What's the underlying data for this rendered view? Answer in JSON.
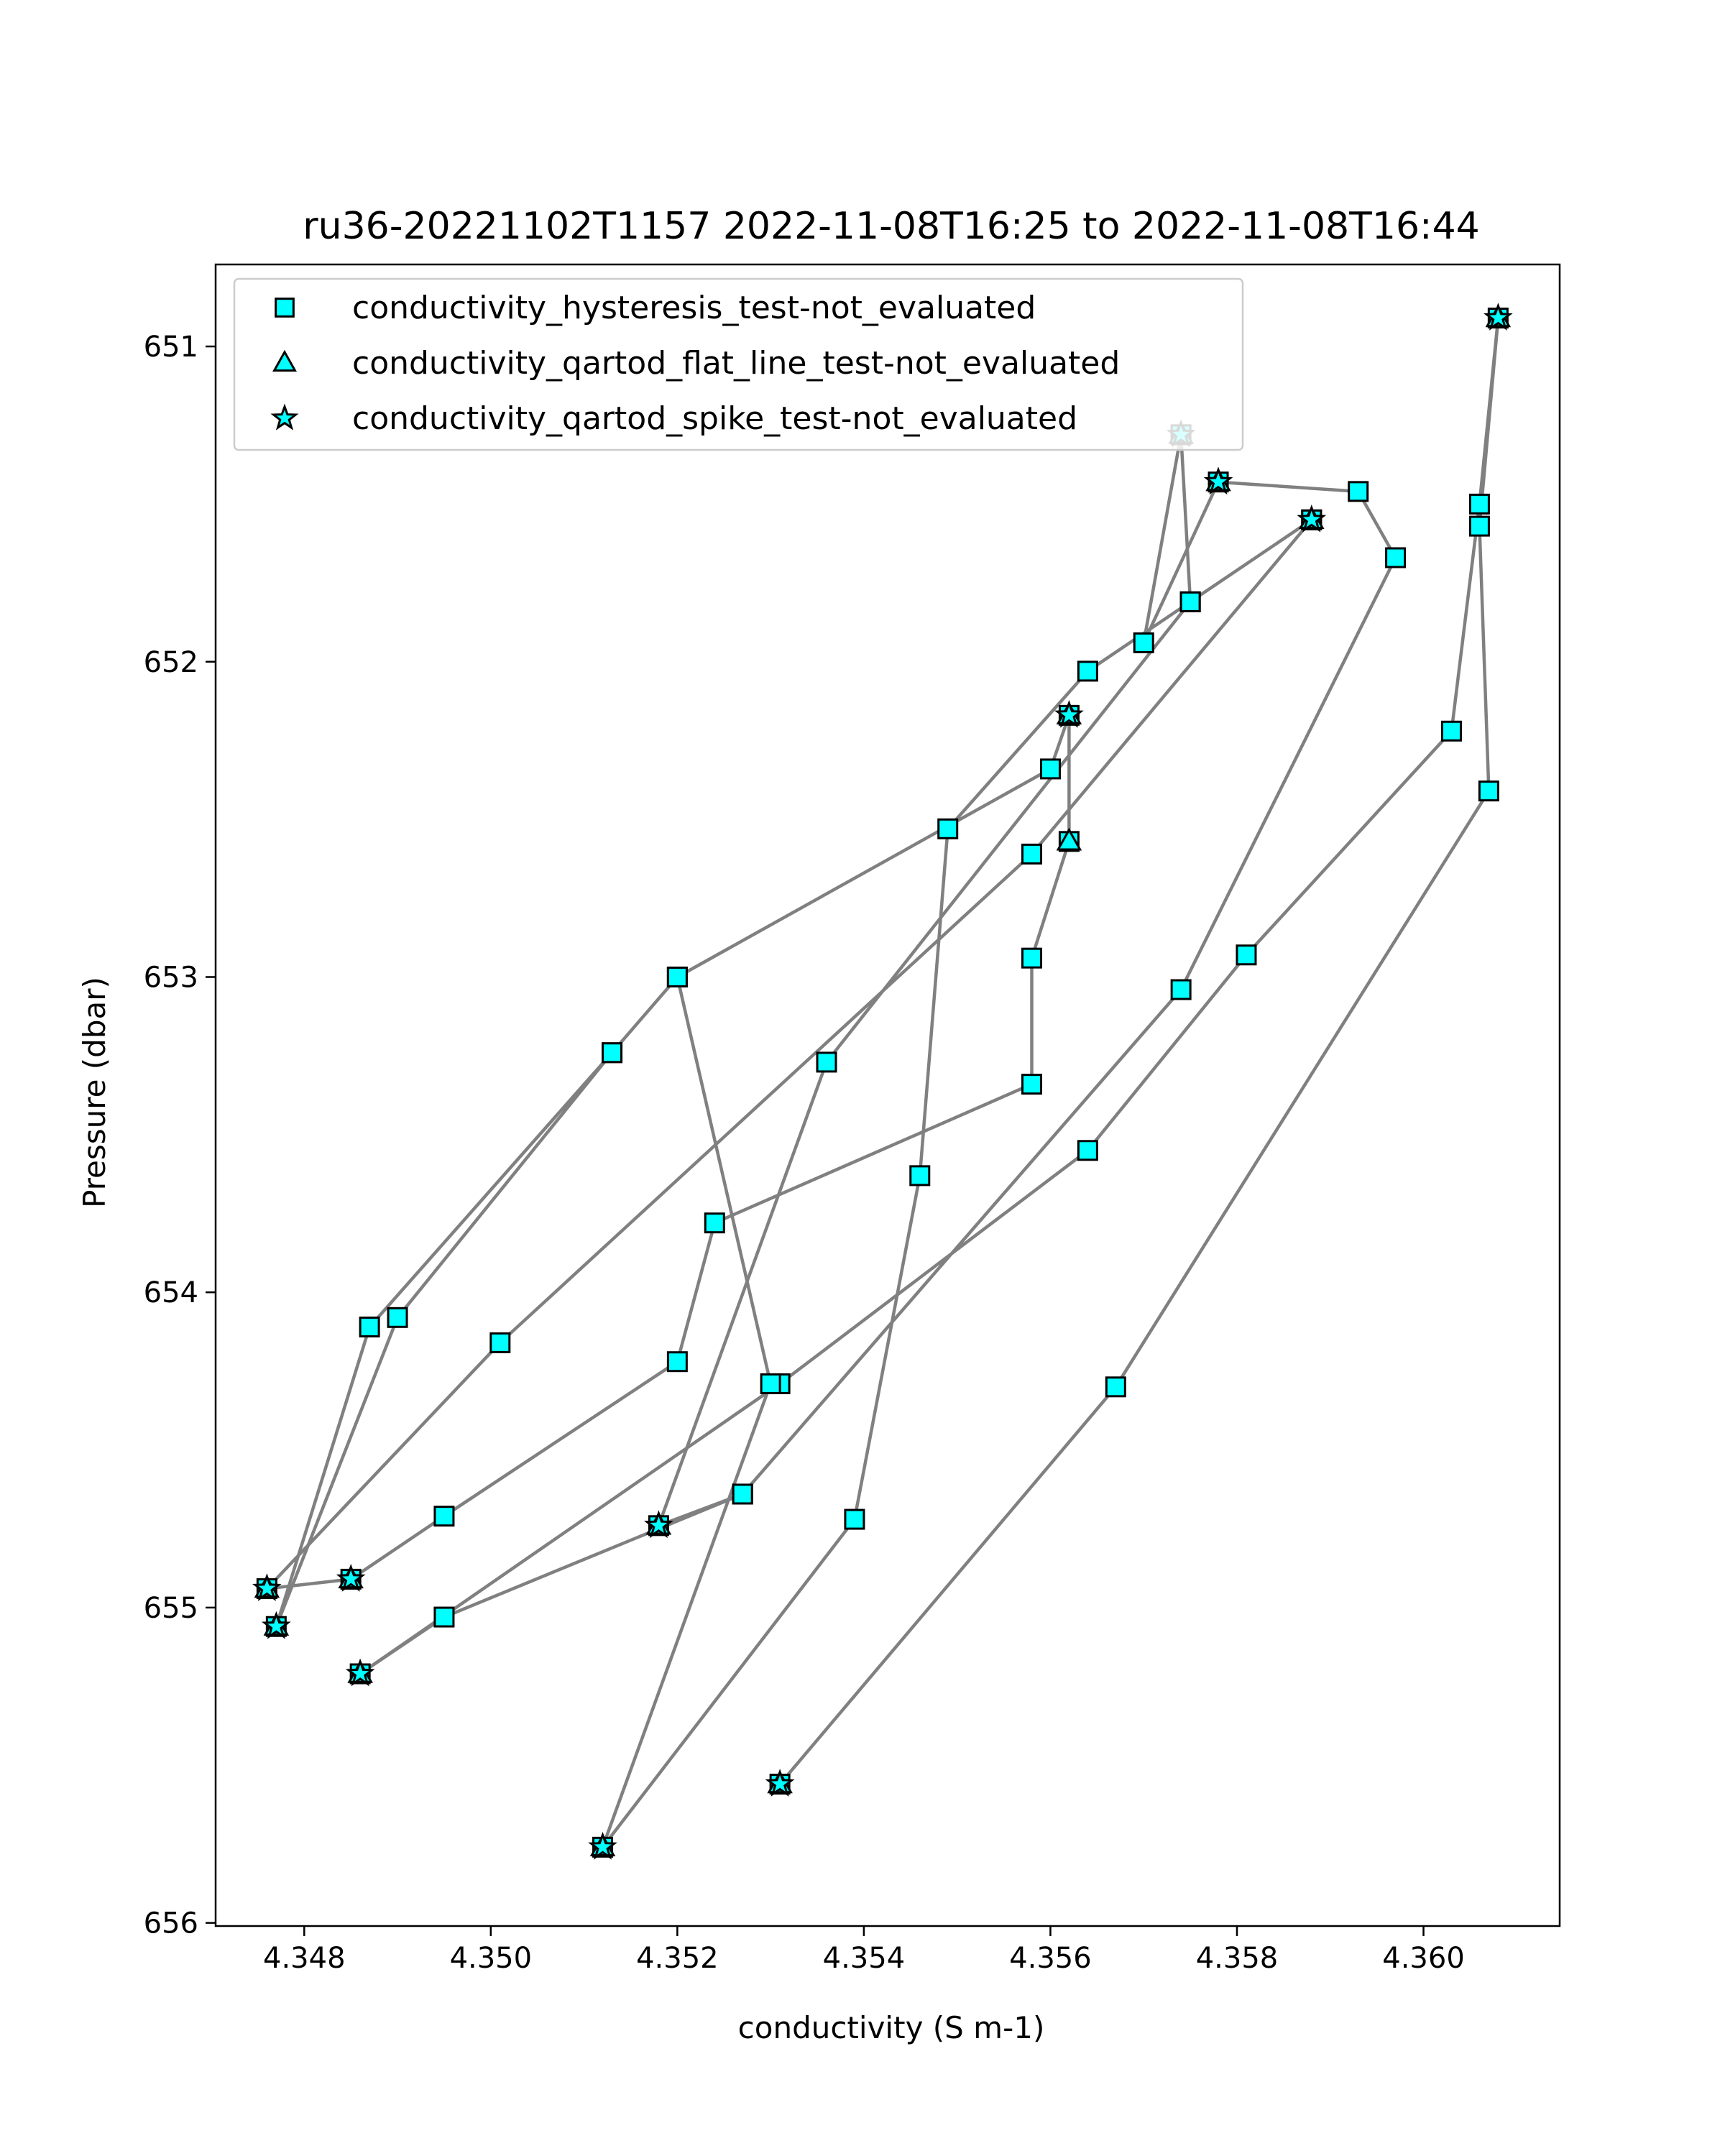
{
  "chart_data": {
    "type": "line",
    "title": "ru36-20221102T1157 2022-11-08T16:25 to 2022-11-08T16:44",
    "xlabel": "conductivity (S m-1)",
    "ylabel": "Pressure (dbar)",
    "xlim": [
      4.34705,
      4.36146
    ],
    "ylim": [
      656.01,
      650.74
    ],
    "y_inverted": true,
    "grid": false,
    "legend_position": "top-left",
    "x_ticks": [
      "4.348",
      "4.350",
      "4.352",
      "4.354",
      "4.356",
      "4.358",
      "4.360"
    ],
    "y_ticks": [
      "651",
      "652",
      "653",
      "654",
      "655",
      "656"
    ],
    "line_color": "#808080",
    "marker_fill": "#00ffff",
    "marker_edge": "#000000",
    "series": [
      {
        "name": "conductivity_hysteresis_test-not_evaluated",
        "marker": "square",
        "points": [
          [
            4.3531,
            655.56
          ],
          [
            4.3567,
            654.3
          ],
          [
            4.3607,
            652.41
          ],
          [
            4.3606,
            651.57
          ],
          [
            4.3608,
            650.91
          ],
          [
            4.3606,
            651.5
          ],
          [
            4.3603,
            652.22
          ],
          [
            4.3581,
            652.93
          ],
          [
            4.3564,
            653.55
          ],
          [
            4.3531,
            654.29
          ],
          [
            4.3486,
            655.21
          ],
          [
            4.3495,
            655.03
          ],
          [
            4.3527,
            654.64
          ],
          [
            4.3574,
            653.04
          ],
          [
            4.3597,
            651.67
          ],
          [
            4.3593,
            651.46
          ],
          [
            4.3578,
            651.43
          ],
          [
            4.357,
            651.94
          ],
          [
            4.3574,
            651.28
          ],
          [
            4.3575,
            651.81
          ],
          [
            4.3588,
            651.55
          ],
          [
            4.3575,
            651.81
          ],
          [
            4.3564,
            652.03
          ],
          [
            4.3549,
            652.53
          ],
          [
            4.3546,
            653.63
          ],
          [
            4.3539,
            654.72
          ],
          [
            4.3512,
            655.76
          ],
          [
            4.353,
            654.29
          ],
          [
            4.352,
            653.0
          ],
          [
            4.3513,
            653.24
          ],
          [
            4.3487,
            654.11
          ],
          [
            4.3477,
            655.06
          ],
          [
            4.349,
            654.08
          ],
          [
            4.3513,
            653.24
          ],
          [
            4.352,
            653.0
          ],
          [
            4.356,
            652.34
          ],
          [
            4.3562,
            652.17
          ],
          [
            4.3562,
            652.57
          ],
          [
            4.3558,
            652.94
          ],
          [
            4.3558,
            653.34
          ],
          [
            4.3524,
            653.78
          ],
          [
            4.352,
            654.22
          ],
          [
            4.3495,
            654.71
          ],
          [
            4.3485,
            654.91
          ],
          [
            4.3476,
            654.94
          ],
          [
            4.3501,
            654.16
          ],
          [
            4.3558,
            652.61
          ],
          [
            4.3588,
            651.55
          ],
          [
            4.3575,
            651.81
          ],
          [
            4.3536,
            653.27
          ],
          [
            4.3518,
            654.74
          ],
          [
            4.3527,
            654.64
          ]
        ]
      },
      {
        "name": "conductivity_qartod_flat_line_test-not_evaluated",
        "marker": "triangle",
        "points": [
          [
            4.3531,
            655.56
          ],
          [
            4.3608,
            650.91
          ],
          [
            4.3574,
            651.28
          ],
          [
            4.3578,
            651.43
          ],
          [
            4.3588,
            651.55
          ],
          [
            4.3562,
            652.17
          ],
          [
            4.3562,
            652.57
          ],
          [
            4.3512,
            655.76
          ],
          [
            4.3518,
            654.74
          ],
          [
            4.3486,
            655.21
          ],
          [
            4.3485,
            654.91
          ],
          [
            4.3477,
            655.06
          ],
          [
            4.3476,
            654.94
          ]
        ]
      },
      {
        "name": "conductivity_qartod_spike_test-not_evaluated",
        "marker": "star",
        "points": [
          [
            4.3531,
            655.56
          ],
          [
            4.3608,
            650.91
          ],
          [
            4.3574,
            651.28
          ],
          [
            4.3578,
            651.43
          ],
          [
            4.3588,
            651.55
          ],
          [
            4.3562,
            652.17
          ],
          [
            4.3512,
            655.76
          ],
          [
            4.3518,
            654.74
          ],
          [
            4.3486,
            655.21
          ],
          [
            4.3485,
            654.91
          ],
          [
            4.3477,
            655.06
          ],
          [
            4.3476,
            654.94
          ]
        ]
      }
    ]
  }
}
